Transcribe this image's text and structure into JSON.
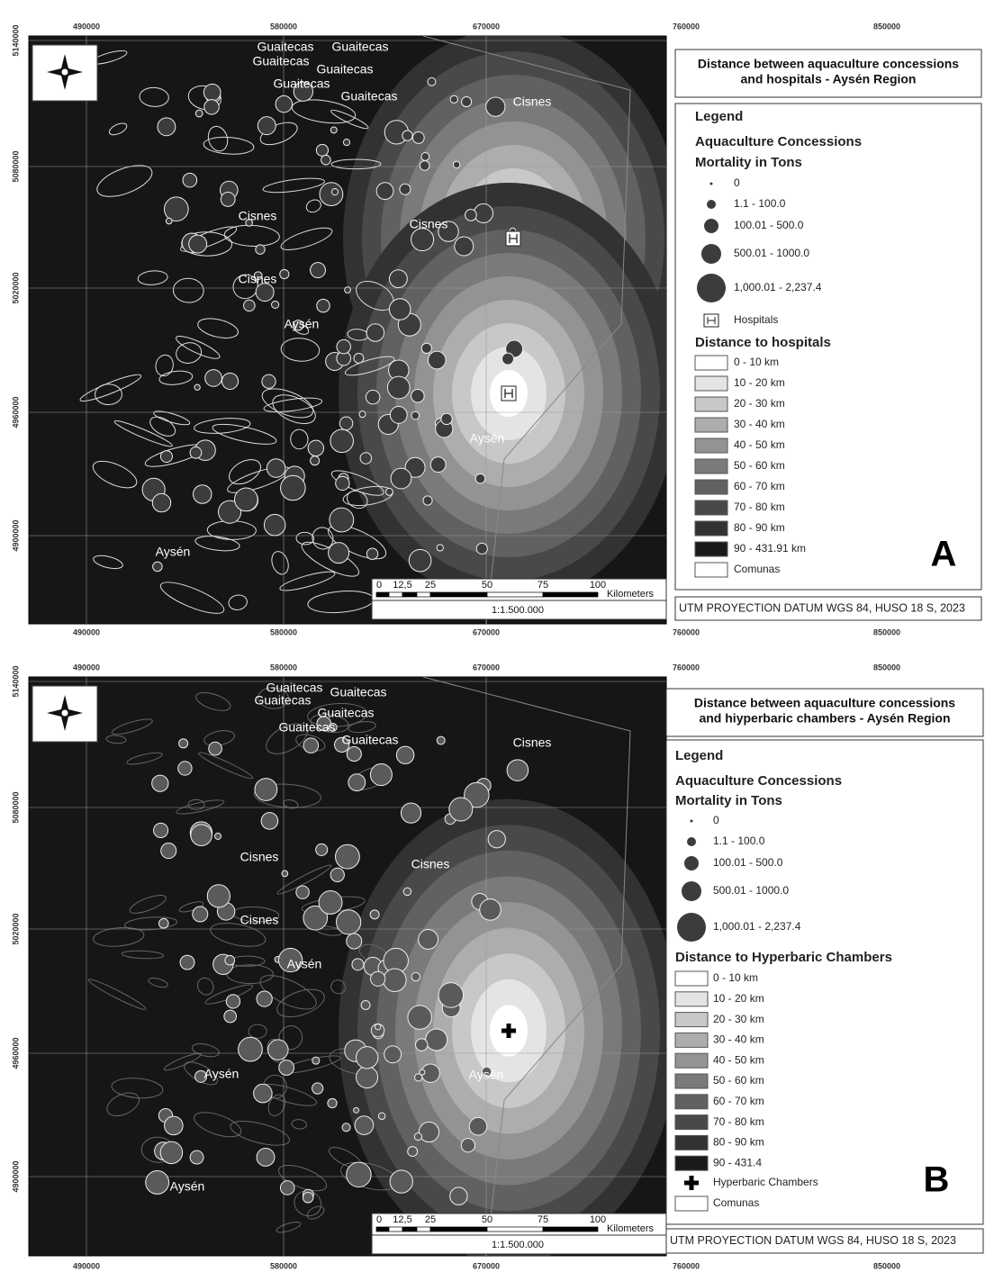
{
  "panels": [
    {
      "letter": "A",
      "title": [
        "Distance between aquaculture concessions",
        "and hospitals - Aysén Region"
      ],
      "x_labels": [
        "490000",
        "580000",
        "670000",
        "760000",
        "850000"
      ],
      "y_labels": [
        "5140000",
        "5080000",
        "5020000",
        "4960000",
        "4900000"
      ],
      "place_labels": [
        "Guaitecas",
        "Guaitecas",
        "Guaitecas",
        "Guaitecas",
        "Guaitecas",
        "Guaitecas",
        "Cisnes",
        "Cisnes",
        "Cisnes",
        "Cisnes",
        "Aysén",
        "Aysén",
        "Aysén"
      ],
      "legend": {
        "heading": "Legend",
        "group": "Aquaculture Concessions",
        "subgroup": "Mortality in Tons",
        "mortality_classes": [
          "0",
          "1.1 - 100.0",
          "100.01 - 500.0",
          "500.01 - 1000.0",
          "1,000.01 - 2,237.4"
        ],
        "facility": "Hospitals",
        "distance_heading": "Distance to hospitals",
        "distance_classes": [
          {
            "label": "0 - 10 km",
            "color": "#ffffff"
          },
          {
            "label": "10 - 20 km",
            "color": "#e4e4e4"
          },
          {
            "label": "20 - 30 km",
            "color": "#c8c8c8"
          },
          {
            "label": "30 - 40 km",
            "color": "#adadad"
          },
          {
            "label": "40 - 50 km",
            "color": "#939393"
          },
          {
            "label": "50 - 60 km",
            "color": "#7a7a7a"
          },
          {
            "label": "60 - 70 km",
            "color": "#616161"
          },
          {
            "label": "70 - 80 km",
            "color": "#494949"
          },
          {
            "label": "80 - 90 km",
            "color": "#323232"
          },
          {
            "label": "90 - 431.91 km",
            "color": "#1a1a1a"
          }
        ],
        "comunas": "Comunas"
      },
      "scale": {
        "ticks": [
          "0",
          "12,5",
          "25",
          "50",
          "75",
          "100"
        ],
        "unit": "Kilometers",
        "ratio": "1:1.500.000"
      },
      "projection": "UTM PROYECTION DATUM WGS 84, HUSO 18 S, 2023"
    },
    {
      "letter": "B",
      "title": [
        "Distance between aquaculture concessions",
        "and hiyperbaric chambers - Aysén Region"
      ],
      "x_labels": [
        "490000",
        "580000",
        "670000",
        "760000",
        "850000"
      ],
      "y_labels": [
        "5140000",
        "5080000",
        "5020000",
        "4960000",
        "4900000"
      ],
      "place_labels": [
        "Guaitecas",
        "Guaitecas",
        "Guaitecas",
        "Guaitecas",
        "Guaitecas",
        "Guaitecas",
        "Cisnes",
        "Cisnes",
        "Cisnes",
        "Cisnes",
        "Aysén",
        "Aysén",
        "Aysén",
        "Aysén"
      ],
      "legend": {
        "heading": "Legend",
        "group": "Aquaculture Concessions",
        "subgroup": "Mortality in Tons",
        "mortality_classes": [
          "0",
          "1.1 - 100.0",
          "100.01 - 500.0",
          "500.01 - 1000.0",
          "1,000.01 - 2,237.4"
        ],
        "distance_heading": "Distance to Hyperbaric Chambers",
        "distance_classes": [
          {
            "label": "0 - 10 km",
            "color": "#ffffff"
          },
          {
            "label": "10 - 20 km",
            "color": "#e4e4e4"
          },
          {
            "label": "20 - 30 km",
            "color": "#c8c8c8"
          },
          {
            "label": "30 - 40 km",
            "color": "#adadad"
          },
          {
            "label": "40 - 50 km",
            "color": "#939393"
          },
          {
            "label": "50 - 60 km",
            "color": "#7a7a7a"
          },
          {
            "label": "60 - 70 km",
            "color": "#616161"
          },
          {
            "label": "70 - 80 km",
            "color": "#494949"
          },
          {
            "label": "80 - 90 km",
            "color": "#323232"
          },
          {
            "label": "90 - 431.4",
            "color": "#1a1a1a"
          }
        ],
        "facility": "Hyperbaric Chambers",
        "comunas": "Comunas"
      },
      "scale": {
        "ticks": [
          "0",
          "12,5",
          "25",
          "50",
          "75",
          "100"
        ],
        "unit": "Kilometers",
        "ratio": "1:1.500.000"
      },
      "projection": "UTM PROYECTION DATUM WGS 84, HUSO 18 S, 2023"
    }
  ]
}
